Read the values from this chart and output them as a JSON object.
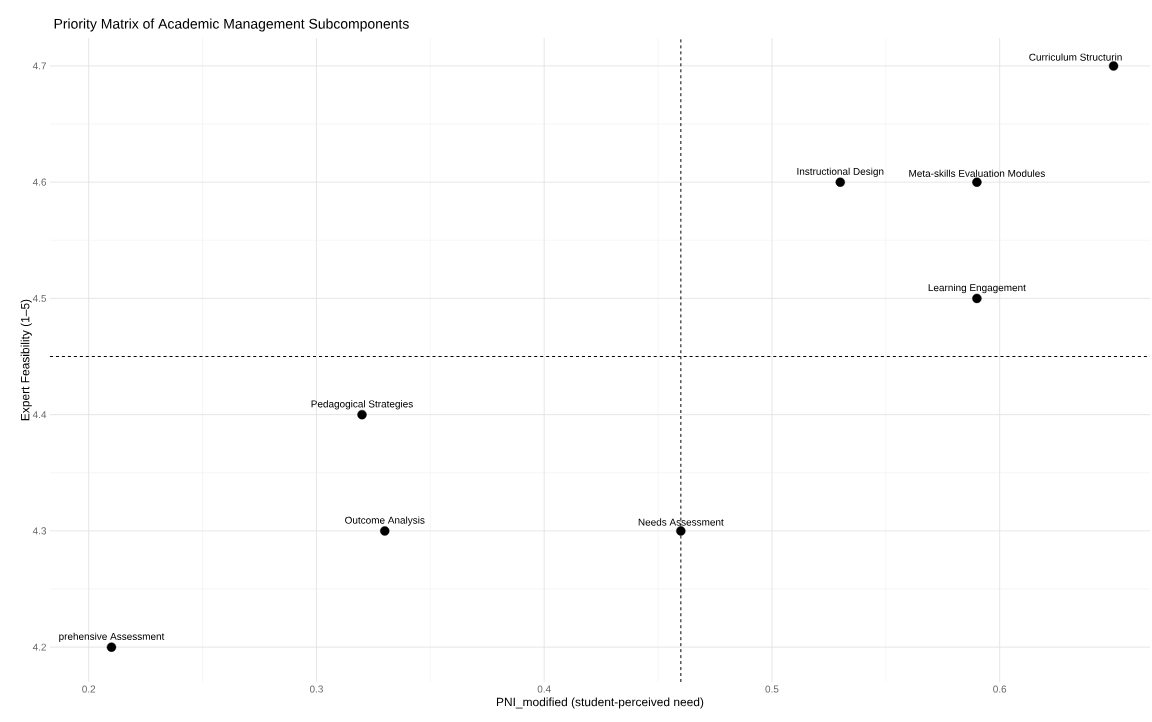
{
  "chart_data": {
    "type": "scatter",
    "title": "Priority Matrix of Academic Management Subcomponents",
    "xlabel": "PNI_modified (student-perceived need)",
    "ylabel": "Expert Feasibility (1–5)",
    "x": [
      0.21,
      0.32,
      0.33,
      0.46,
      0.53,
      0.59,
      0.59,
      0.65
    ],
    "values": [
      4.2,
      4.4,
      4.3,
      4.3,
      4.6,
      4.6,
      4.5,
      4.7
    ],
    "color": "#000000",
    "marker": "circle",
    "xlim": [
      0.183,
      0.666
    ],
    "ylim": [
      4.17,
      4.724
    ],
    "xticks": [
      0.2,
      0.3,
      0.4,
      0.5,
      0.6
    ],
    "yticks": [
      4.2,
      4.3,
      4.4,
      4.5,
      4.6,
      4.7
    ],
    "grid": true,
    "ref_lines": [
      {
        "axis": "x",
        "value": 0.46,
        "line_style": "dashed",
        "color": "#000000"
      },
      {
        "axis": "y",
        "value": 4.45,
        "line_style": "dashed",
        "color": "#000000"
      }
    ],
    "annotations": [
      {
        "text": "prehensive Assessment",
        "x": 0.21,
        "y": 4.2
      },
      {
        "text": "Pedagogical Strategies",
        "x": 0.32,
        "y": 4.4
      },
      {
        "text": "Outcome Analysis",
        "x": 0.33,
        "y": 4.3
      },
      {
        "text": "Needs Assessment",
        "x": 0.46,
        "y": 4.3
      },
      {
        "text": "Instructional Design",
        "x": 0.53,
        "y": 4.6
      },
      {
        "text": "Meta-skills Evaluation Modules",
        "x": 0.59,
        "y": 4.6
      },
      {
        "text": "Learning Engagement",
        "x": 0.59,
        "y": 4.5
      },
      {
        "text": "Curriculum Structurin",
        "x": 0.65,
        "y": 4.7
      }
    ]
  }
}
